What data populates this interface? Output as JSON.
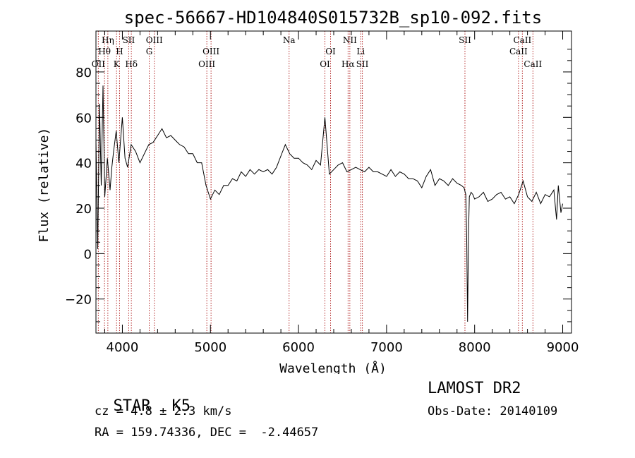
{
  "chart_data": {
    "type": "line",
    "title": "spec-56667-HD104840S015732B_sp10-092.fits",
    "xlabel": "Wavelength (Å)",
    "ylabel": "Flux (relative)",
    "xlim": [
      3700,
      9100
    ],
    "ylim": [
      -35,
      98
    ],
    "xticks": [
      4000,
      5000,
      6000,
      7000,
      8000,
      9000
    ],
    "yticks": [
      -20,
      0,
      20,
      40,
      60,
      80
    ],
    "grid": false,
    "line_color": "#000000",
    "marker_color": "#b22222",
    "series": [
      {
        "x": [
          3700,
          3720,
          3740,
          3760,
          3780,
          3800,
          3830,
          3860,
          3880,
          3900,
          3930,
          3960,
          3980,
          4000,
          4030,
          4060,
          4100,
          4150,
          4200,
          4250,
          4300,
          4350,
          4400,
          4450,
          4500,
          4550,
          4600,
          4650,
          4700,
          4750,
          4800,
          4850,
          4900,
          4950,
          5000,
          5050,
          5100,
          5150,
          5200,
          5250,
          5300,
          5350,
          5400,
          5450,
          5500,
          5550,
          5600,
          5650,
          5700,
          5750,
          5800,
          5850,
          5900,
          5950,
          6000,
          6050,
          6100,
          6150,
          6200,
          6250,
          6300,
          6350,
          6400,
          6450,
          6500,
          6550,
          6600,
          6650,
          6700,
          6750,
          6800,
          6850,
          6900,
          6950,
          7000,
          7050,
          7100,
          7150,
          7200,
          7250,
          7300,
          7350,
          7400,
          7450,
          7500,
          7550,
          7600,
          7650,
          7700,
          7750,
          7800,
          7850,
          7880,
          7900,
          7910,
          7920,
          7930,
          7940,
          7960,
          7980,
          8000,
          8050,
          8100,
          8150,
          8200,
          8250,
          8300,
          8350,
          8400,
          8450,
          8500,
          8550,
          8600,
          8650,
          8700,
          8750,
          8800,
          8850,
          8900,
          8930,
          8950,
          8980,
          9000
        ],
        "y": [
          50,
          2,
          66,
          30,
          74,
          25,
          42,
          28,
          38,
          45,
          54,
          40,
          50,
          60,
          42,
          38,
          48,
          45,
          40,
          44,
          48,
          49,
          52,
          55,
          51,
          52,
          50,
          48,
          47,
          44,
          44,
          40,
          40,
          30,
          24,
          28,
          26,
          30,
          30,
          33,
          32,
          36,
          34,
          37,
          35,
          37,
          36,
          37,
          35,
          38,
          43,
          48,
          44,
          42,
          42,
          40,
          39,
          37,
          41,
          39,
          60,
          35,
          37,
          39,
          40,
          36,
          37,
          38,
          37,
          36,
          38,
          36,
          36,
          35,
          34,
          37,
          34,
          36,
          35,
          33,
          33,
          32,
          29,
          34,
          37,
          30,
          33,
          32,
          30,
          33,
          31,
          30,
          29,
          26,
          6,
          -30,
          8,
          25,
          27,
          26,
          24,
          25,
          27,
          23,
          24,
          26,
          27,
          24,
          25,
          22,
          26,
          32,
          25,
          23,
          27,
          22,
          26,
          25,
          28,
          15,
          30,
          18,
          22
        ]
      }
    ],
    "lines": [
      {
        "label": "Hη",
        "x": 3835,
        "row": 0
      },
      {
        "label": "Hθ",
        "x": 3797,
        "row": 1
      },
      {
        "label": "OII",
        "x": 3727,
        "row": 2
      },
      {
        "label": "H",
        "x": 3968,
        "row": 1
      },
      {
        "label": "K",
        "x": 3934,
        "row": 2
      },
      {
        "label": "SII",
        "x": 4072,
        "row": 0
      },
      {
        "label": "Hδ",
        "x": 4102,
        "row": 2
      },
      {
        "label": "G",
        "x": 4305,
        "row": 1
      },
      {
        "label": "OIII",
        "x": 4363,
        "row": 0
      },
      {
        "label": "OIII",
        "x": 5007,
        "row": 1
      },
      {
        "label": "OIII",
        "x": 4959,
        "row": 2
      },
      {
        "label": "Na",
        "x": 5893,
        "row": 0
      },
      {
        "label": "OI",
        "x": 6364,
        "row": 1
      },
      {
        "label": "OI",
        "x": 6300,
        "row": 2
      },
      {
        "label": "NII",
        "x": 6583,
        "row": 0
      },
      {
        "label": "Hα",
        "x": 6563,
        "row": 2
      },
      {
        "label": "Li",
        "x": 6707,
        "row": 1
      },
      {
        "label": "SII",
        "x": 6725,
        "row": 2
      },
      {
        "label": "SII",
        "x": 7890,
        "row": 0
      },
      {
        "label": "CaII",
        "x": 8542,
        "row": 0
      },
      {
        "label": "CaII",
        "x": 8498,
        "row": 1
      },
      {
        "label": "CaII",
        "x": 8662,
        "row": 2
      }
    ]
  },
  "info": {
    "class_label": "STAR",
    "subclass": "K5",
    "survey": "LAMOST DR2",
    "cz": "cz = 4.8 ± 2.3 km/s",
    "obs_date": "Obs-Date: 20140109",
    "coords": "RA = 159.74336, DEC =  -2.44657"
  }
}
